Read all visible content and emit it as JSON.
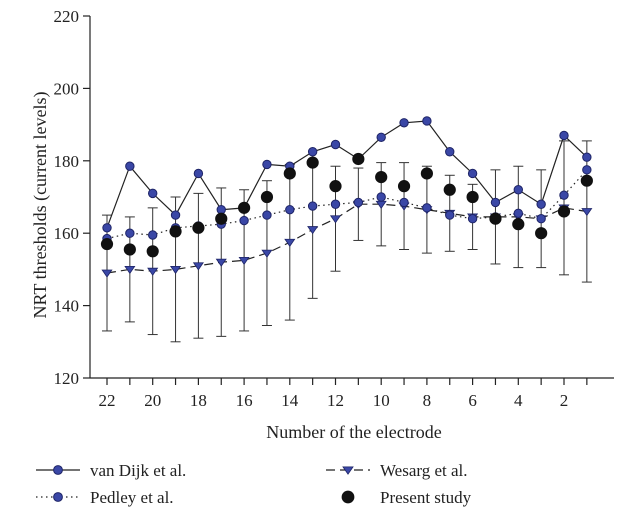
{
  "chart_data": {
    "type": "line",
    "xlabel": "Number of the electrode",
    "ylabel": "NRT thresholds (current levels)",
    "ylim": [
      120,
      220
    ],
    "yticks": [
      120,
      140,
      160,
      180,
      200,
      220
    ],
    "xticks": [
      22,
      20,
      18,
      16,
      14,
      12,
      10,
      8,
      6,
      4,
      2
    ],
    "x_reversed": true,
    "electrodes": [
      22,
      21,
      20,
      19,
      18,
      17,
      16,
      15,
      14,
      13,
      12,
      11,
      10,
      9,
      8,
      7,
      6,
      5,
      4,
      3,
      2,
      1
    ],
    "grid": false,
    "legend_position": "bottom",
    "series": [
      {
        "name": "van Dijk et al.",
        "style": "solid",
        "marker": "circle",
        "color": "#2e3a8f",
        "values": [
          161.5,
          178.5,
          171,
          165,
          176.5,
          166.5,
          167,
          179,
          178.5,
          182.5,
          184.5,
          180.5,
          186.5,
          190.5,
          191,
          182.5,
          176.5,
          168.5,
          172,
          168,
          187,
          181
        ]
      },
      {
        "name": "Wesarg et al.",
        "style": "dashed",
        "marker": "triangle-down",
        "color": "#2e3a8f",
        "values": [
          149,
          150,
          149.5,
          150,
          151,
          152,
          152.5,
          154.5,
          157.5,
          161,
          164,
          168,
          168,
          167.5,
          166.5,
          165.5,
          164.5,
          164.5,
          164.5,
          164,
          167,
          166
        ],
        "error": [
          16,
          14.5,
          17.5,
          20,
          20,
          20.5,
          19.5,
          20,
          21.5,
          19,
          14.5,
          10,
          11.5,
          12,
          12,
          10.5,
          9,
          13,
          14,
          13.5,
          18.5,
          19.5
        ]
      },
      {
        "name": "Pedley et al.",
        "style": "dotted",
        "marker": "circle",
        "color": "#2e3a8f",
        "values": [
          158.5,
          160,
          159.5,
          161.5,
          162,
          162.5,
          163.5,
          165,
          166.5,
          167.5,
          168,
          168.5,
          170,
          168.5,
          167,
          165,
          164,
          164.5,
          165.5,
          164,
          170.5,
          177.5
        ]
      },
      {
        "name": "Present study",
        "style": "none",
        "marker": "filled-circle",
        "color": "#111111",
        "values": [
          157,
          155.5,
          155,
          160.5,
          161.5,
          164,
          167,
          170,
          176.5,
          179.5,
          173,
          180.5,
          175.5,
          173,
          176.5,
          172,
          170,
          164,
          162.5,
          160,
          166,
          174.5
        ]
      }
    ]
  },
  "legend": {
    "entries": [
      "van Dijk et al.",
      "Wesarg et al.",
      "Pedley et al.",
      "Present study"
    ]
  }
}
